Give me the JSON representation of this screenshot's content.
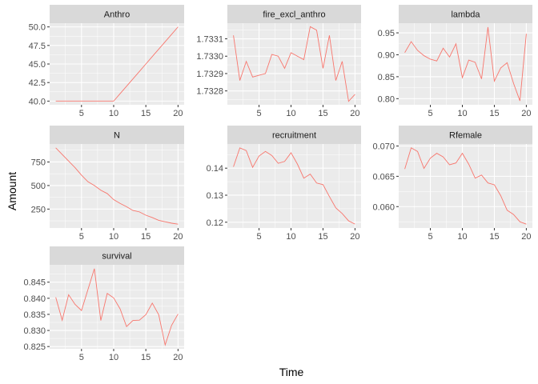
{
  "figure": {
    "xlabel": "Time",
    "ylabel": "Amount",
    "colors": {
      "panel_bg": "#EBEBEB",
      "grid_major": "#FFFFFF",
      "strip_bg": "#D9D9D9",
      "line": "#F8766D",
      "tick_text": "#4D4D4D",
      "strip_text": "#1A1A1A"
    }
  },
  "chart_data": [
    {
      "type": "line",
      "title": "Anthro",
      "x": [
        1,
        2,
        3,
        4,
        5,
        6,
        7,
        8,
        9,
        10,
        11,
        12,
        13,
        14,
        15,
        16,
        17,
        18,
        19,
        20
      ],
      "y": [
        40,
        40,
        40,
        40,
        40,
        40,
        40,
        40,
        40,
        40,
        41,
        42,
        43,
        44,
        45,
        46,
        47,
        48,
        49,
        50
      ],
      "xlim": [
        0.05,
        20.95
      ],
      "ylim": [
        39.5,
        50.5
      ],
      "xticks": [
        5,
        10,
        15,
        20
      ],
      "yticks": [
        40.0,
        42.5,
        45.0,
        47.5,
        50.0
      ],
      "yticklabels": [
        "40.0",
        "42.5",
        "45.0",
        "47.5",
        "50.0"
      ],
      "xticklabels": [
        "5",
        "10",
        "15",
        "20"
      ]
    },
    {
      "type": "line",
      "title": "fire_excl_anthro",
      "x": [
        1,
        2,
        3,
        4,
        5,
        6,
        7,
        8,
        9,
        10,
        11,
        12,
        13,
        14,
        15,
        16,
        17,
        18,
        19,
        20
      ],
      "y": [
        1.73312,
        1.73286,
        1.73297,
        1.73288,
        1.73289,
        1.7329,
        1.73301,
        1.733,
        1.73293,
        1.73302,
        1.733,
        1.73298,
        1.73317,
        1.73315,
        1.73293,
        1.73312,
        1.73286,
        1.73297,
        1.73274,
        1.73278
      ],
      "xlim": [
        0.05,
        20.95
      ],
      "ylim": [
        1.73272,
        1.73319
      ],
      "xticks": [
        5,
        10,
        15,
        20
      ],
      "yticks": [
        1.7328,
        1.7329,
        1.733,
        1.7331
      ],
      "yticklabels": [
        "1.7328",
        "1.7329",
        "1.7330",
        "1.7331"
      ],
      "xticklabels": [
        "5",
        "10",
        "15",
        "20"
      ]
    },
    {
      "type": "line",
      "title": "lambda",
      "x": [
        1,
        2,
        3,
        4,
        5,
        6,
        7,
        8,
        9,
        10,
        11,
        12,
        13,
        14,
        15,
        16,
        17,
        18,
        19,
        20
      ],
      "y": [
        0.905,
        0.93,
        0.91,
        0.898,
        0.89,
        0.886,
        0.915,
        0.895,
        0.925,
        0.848,
        0.888,
        0.883,
        0.845,
        0.963,
        0.84,
        0.87,
        0.882,
        0.835,
        0.795,
        0.948
      ],
      "xlim": [
        0.05,
        20.95
      ],
      "ylim": [
        0.786,
        0.972
      ],
      "xticks": [
        5,
        10,
        15,
        20
      ],
      "yticks": [
        0.8,
        0.85,
        0.9,
        0.95
      ],
      "yticklabels": [
        "0.80",
        "0.85",
        "0.90",
        "0.95"
      ],
      "xticklabels": [
        "5",
        "10",
        "15",
        "20"
      ]
    },
    {
      "type": "line",
      "title": "N",
      "x": [
        1,
        2,
        3,
        4,
        5,
        6,
        7,
        8,
        9,
        10,
        11,
        12,
        13,
        14,
        15,
        16,
        17,
        18,
        19,
        20
      ],
      "y": [
        900,
        830,
        760,
        690,
        610,
        540,
        500,
        450,
        415,
        350,
        310,
        275,
        235,
        220,
        185,
        160,
        130,
        115,
        100,
        90
      ],
      "xlim": [
        0.05,
        20.95
      ],
      "ylim": [
        49,
        941
      ],
      "xticks": [
        5,
        10,
        15,
        20
      ],
      "yticks": [
        250,
        500,
        750
      ],
      "yticklabels": [
        "250",
        "500",
        "750"
      ],
      "xticklabels": [
        "5",
        "10",
        "15",
        "20"
      ]
    },
    {
      "type": "line",
      "title": "recruitment",
      "x": [
        1,
        2,
        3,
        4,
        5,
        6,
        7,
        8,
        9,
        10,
        11,
        12,
        13,
        14,
        15,
        16,
        17,
        18,
        19,
        20
      ],
      "y": [
        0.1405,
        0.1475,
        0.1465,
        0.1403,
        0.1445,
        0.1462,
        0.1447,
        0.1418,
        0.1425,
        0.1457,
        0.1415,
        0.1363,
        0.1378,
        0.1345,
        0.1339,
        0.1295,
        0.1253,
        0.1232,
        0.1205,
        0.1193
      ],
      "xlim": [
        0.05,
        20.95
      ],
      "ylim": [
        0.11786,
        0.14894
      ],
      "xticks": [
        5,
        10,
        15,
        20
      ],
      "yticks": [
        0.12,
        0.13,
        0.14
      ],
      "yticklabels": [
        "0.12",
        "0.13",
        "0.14"
      ],
      "xticklabels": [
        "5",
        "10",
        "15",
        "20"
      ]
    },
    {
      "type": "line",
      "title": "Rfemale",
      "x": [
        1,
        2,
        3,
        4,
        5,
        6,
        7,
        8,
        9,
        10,
        11,
        12,
        13,
        14,
        15,
        16,
        17,
        18,
        19,
        20
      ],
      "y": [
        0.0662,
        0.0697,
        0.0691,
        0.0663,
        0.068,
        0.0688,
        0.0682,
        0.0669,
        0.0672,
        0.0688,
        0.067,
        0.0647,
        0.0652,
        0.0639,
        0.0636,
        0.0618,
        0.0594,
        0.0587,
        0.0575,
        0.0571
      ],
      "xlim": [
        0.05,
        20.95
      ],
      "ylim": [
        0.05647,
        0.07033
      ],
      "xticks": [
        5,
        10,
        15,
        20
      ],
      "yticks": [
        0.06,
        0.065,
        0.07
      ],
      "yticklabels": [
        "0.060",
        "0.065",
        "0.070"
      ],
      "xticklabels": [
        "5",
        "10",
        "15",
        "20"
      ]
    },
    {
      "type": "line",
      "title": "survival",
      "x": [
        1,
        2,
        3,
        4,
        5,
        6,
        7,
        8,
        9,
        10,
        11,
        12,
        13,
        14,
        15,
        16,
        17,
        18,
        19,
        20
      ],
      "y": [
        0.8403,
        0.8332,
        0.8411,
        0.8381,
        0.8362,
        0.8427,
        0.8492,
        0.8331,
        0.8415,
        0.8401,
        0.8367,
        0.8312,
        0.8331,
        0.8332,
        0.8349,
        0.8385,
        0.8349,
        0.8255,
        0.8316,
        0.8351
      ],
      "xlim": [
        0.05,
        20.95
      ],
      "ylim": [
        0.8243,
        0.8504
      ],
      "xticks": [
        5,
        10,
        15,
        20
      ],
      "yticks": [
        0.825,
        0.83,
        0.835,
        0.84,
        0.845
      ],
      "yticklabels": [
        "0.825",
        "0.830",
        "0.835",
        "0.840",
        "0.845"
      ],
      "xticklabels": [
        "5",
        "10",
        "15",
        "20"
      ]
    }
  ]
}
